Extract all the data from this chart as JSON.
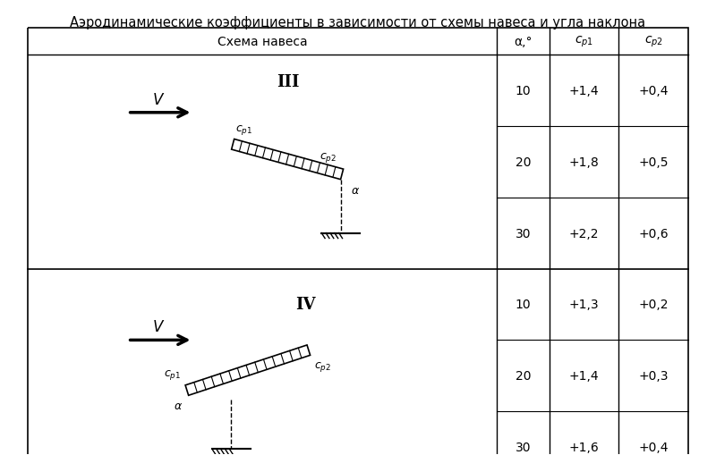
{
  "title": "Аэродинамические коэффициенты в зависимости от схемы навеса и угла наклона",
  "col_header_schema": "Схема навеса",
  "col_header_alpha": "α,°",
  "col_header_cp1": "cₚ₁",
  "col_header_cp2": "cₚ₂",
  "schema_III_label": "III",
  "schema_IV_label": "IV",
  "rows_III": [
    {
      "alpha": 10,
      "cp1": "+1,4",
      "cp2": "+0,4"
    },
    {
      "alpha": 20,
      "cp1": "+1,8",
      "cp2": "+0,5"
    },
    {
      "alpha": 30,
      "cp1": "+2,2",
      "cp2": "+0,6"
    }
  ],
  "rows_IV": [
    {
      "alpha": 10,
      "cp1": "+1,3",
      "cp2": "+0,2"
    },
    {
      "alpha": 20,
      "cp1": "+1,4",
      "cp2": "+0,3"
    },
    {
      "alpha": 30,
      "cp1": "+1,6",
      "cp2": "+0,4"
    }
  ],
  "bg_color": "#ffffff",
  "border_color": "#000000",
  "text_color": "#000000",
  "title_fontsize": 10.5,
  "header_fontsize": 10,
  "cell_fontsize": 10,
  "diagram_fontsize": 9
}
